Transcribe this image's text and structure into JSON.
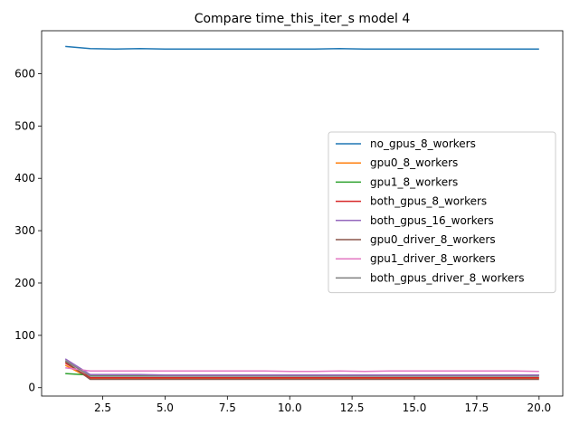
{
  "chart_data": {
    "type": "line",
    "title": "Compare time_this_iter_s model 4",
    "xlabel": "",
    "ylabel": "",
    "xlim": [
      0.05,
      20.95
    ],
    "ylim": [
      -16,
      682
    ],
    "x_ticks": [
      2.5,
      5.0,
      7.5,
      10.0,
      12.5,
      15.0,
      17.5,
      20.0
    ],
    "x_tick_labels": [
      "2.5",
      "5.0",
      "7.5",
      "10.0",
      "12.5",
      "15.0",
      "17.5",
      "20.0"
    ],
    "y_ticks": [
      0,
      100,
      200,
      300,
      400,
      500,
      600
    ],
    "y_tick_labels": [
      "0",
      "100",
      "200",
      "300",
      "400",
      "500",
      "600"
    ],
    "grid": false,
    "legend_position": "center-right",
    "x": [
      1,
      2,
      3,
      4,
      5,
      6,
      7,
      8,
      9,
      10,
      11,
      12,
      13,
      14,
      15,
      16,
      17,
      18,
      19,
      20
    ],
    "series": [
      {
        "name": "no_gpus_8_workers",
        "color": "#1f77b4",
        "values": [
          652,
          648,
          647,
          648,
          647,
          647,
          647,
          647,
          647,
          647,
          647,
          648,
          647,
          647,
          647,
          647,
          647,
          647,
          647,
          647
        ]
      },
      {
        "name": "gpu0_8_workers",
        "color": "#ff7f0e",
        "values": [
          43,
          18,
          18,
          18,
          18,
          18,
          18,
          18,
          18,
          18,
          18,
          18,
          18,
          18,
          18,
          18,
          18,
          18,
          18,
          18
        ]
      },
      {
        "name": "gpu1_8_workers",
        "color": "#2ca02c",
        "values": [
          27,
          24,
          24,
          24,
          23,
          23,
          23,
          23,
          23,
          23,
          23,
          23,
          23,
          23,
          23,
          23,
          23,
          23,
          23,
          24
        ]
      },
      {
        "name": "both_gpus_8_workers",
        "color": "#d62728",
        "values": [
          47,
          19,
          19,
          19,
          19,
          19,
          19,
          19,
          19,
          19,
          19,
          19,
          19,
          19,
          19,
          19,
          19,
          19,
          19,
          19
        ]
      },
      {
        "name": "both_gpus_16_workers",
        "color": "#9467bd",
        "values": [
          55,
          25,
          25,
          25,
          24,
          24,
          24,
          24,
          24,
          24,
          24,
          24,
          24,
          24,
          24,
          24,
          24,
          24,
          24,
          24
        ]
      },
      {
        "name": "gpu0_driver_8_workers",
        "color": "#8c564b",
        "values": [
          50,
          16,
          16,
          16,
          16,
          16,
          16,
          16,
          16,
          16,
          16,
          16,
          16,
          16,
          16,
          16,
          16,
          16,
          16,
          16
        ]
      },
      {
        "name": "gpu1_driver_8_workers",
        "color": "#e377c2",
        "values": [
          38,
          32,
          32,
          32,
          32,
          32,
          32,
          32,
          32,
          31,
          31,
          32,
          31,
          32,
          32,
          32,
          32,
          32,
          32,
          31
        ]
      },
      {
        "name": "both_gpus_driver_8_workers",
        "color": "#7f7f7f",
        "values": [
          52,
          22,
          22,
          22,
          22,
          22,
          22,
          22,
          22,
          22,
          22,
          22,
          22,
          22,
          22,
          22,
          22,
          22,
          22,
          22
        ]
      }
    ]
  }
}
